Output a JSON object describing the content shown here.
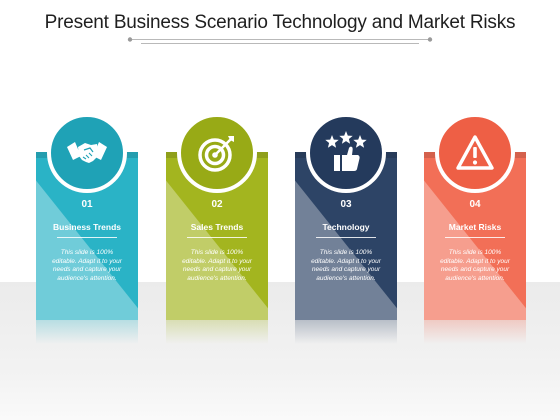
{
  "title": "Present Business Scenario Technology and Market Risks",
  "cards": [
    {
      "number": "01",
      "label": "Business Trends",
      "description": "This slide is 100% editable. Adapt it to your needs and capture your audience's attention.",
      "icon": "handshake-icon",
      "color": "#2ab3c6",
      "circle_color": "#1fa2b6"
    },
    {
      "number": "02",
      "label": "Sales Trends",
      "description": "This slide is 100% editable. Adapt it to your needs and capture your audience's attention.",
      "icon": "target-icon",
      "color": "#a3b51f",
      "circle_color": "#98aa16"
    },
    {
      "number": "03",
      "label": "Technology",
      "description": "This slide is 100% editable. Adapt it to your needs and capture your audience's attention.",
      "icon": "thumbs-up-stars-icon",
      "color": "#2d4466",
      "circle_color": "#243a5c"
    },
    {
      "number": "04",
      "label": "Market Risks",
      "description": "This slide is 100% editable. Adapt it to your needs and capture your audience's attention.",
      "icon": "warning-icon",
      "color": "#f26f57",
      "circle_color": "#ee5f45"
    }
  ]
}
